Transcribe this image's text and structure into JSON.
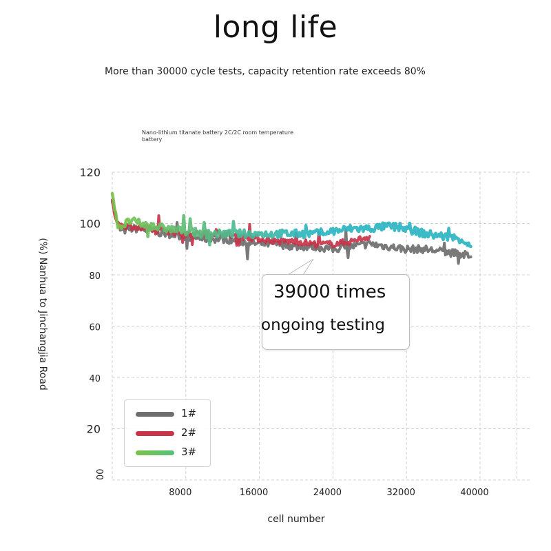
{
  "header": {
    "title": "long life",
    "subtitle": "More than 30000 cycle tests, capacity retention rate exceeds 80%"
  },
  "callout": {
    "line1": "39000 times",
    "line2": "ongoing testing"
  },
  "chart_data": {
    "type": "line",
    "title": "Nano-lithium titanate battery 2C/2C room temperature battery",
    "xlabel": "cell number",
    "ylabel": "(%) Nanhua to Jinchangjia Road",
    "xlim": [
      0,
      40000
    ],
    "ylim": [
      0,
      120
    ],
    "x_ticks": [
      0,
      8000,
      16000,
      24000,
      32000,
      40000
    ],
    "x_tick_labels": [
      "",
      "8000",
      "16000",
      "24000",
      "32000",
      "40000"
    ],
    "y_ticks": [
      0,
      20,
      40,
      60,
      80,
      100,
      120
    ],
    "y_tick_labels": [
      "00",
      "20",
      "40",
      "60",
      "80",
      "100",
      "120"
    ],
    "grid": true,
    "legend_position": "bottom-left",
    "series": [
      {
        "name": "1#",
        "color": "#6e6e6e",
        "x": [
          0,
          500,
          1000,
          2000,
          3000,
          4000,
          6000,
          8000,
          10000,
          12000,
          14000,
          16000,
          18000,
          20000,
          22000,
          24000,
          26000,
          28000,
          30000,
          32000,
          34000,
          36000,
          38000,
          39000
        ],
        "y": [
          110,
          100,
          97,
          98,
          98,
          97,
          96,
          95,
          94,
          94,
          93,
          92,
          92,
          91,
          91,
          90,
          91,
          92,
          91,
          90,
          90,
          89,
          88,
          87
        ]
      },
      {
        "name": "2#",
        "color": "#c8344a",
        "x": [
          0,
          500,
          1000,
          2000,
          3000,
          4000,
          6000,
          8000,
          10000,
          12000,
          14000,
          16000,
          18000,
          20000,
          22000,
          24000,
          26000,
          28000
        ],
        "y": [
          108,
          101,
          99,
          99,
          98,
          98,
          97,
          96,
          96,
          96,
          95,
          94,
          93,
          93,
          92,
          92,
          93,
          95
        ]
      },
      {
        "name": "3#",
        "color": "#7cc24a",
        "x": [
          0,
          500,
          1000,
          2000,
          3000,
          4000,
          6000,
          8000,
          10000,
          12000,
          14000,
          16000,
          18000,
          20000,
          22000,
          24000,
          26000,
          28000,
          30000,
          32000,
          34000,
          36000,
          38000,
          39000
        ],
        "y": [
          112,
          100,
          99,
          101,
          100,
          99,
          98,
          97,
          96,
          96,
          96,
          96,
          96,
          96,
          96,
          97,
          98,
          98,
          99,
          98,
          96,
          95,
          94,
          91
        ],
        "gradient_end_color": "#2bb5c2"
      }
    ]
  }
}
